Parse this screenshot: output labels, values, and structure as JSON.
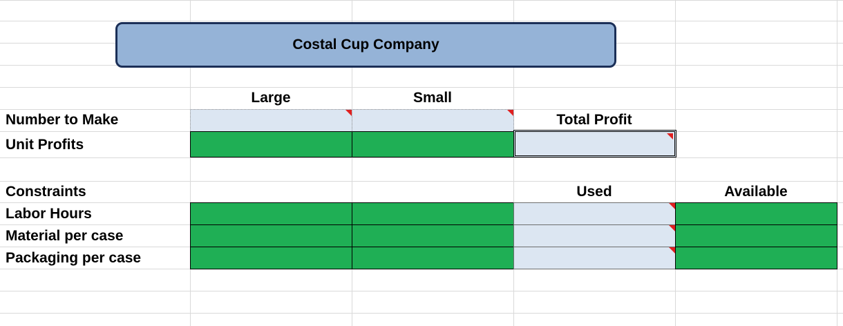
{
  "title": "Costal Cup Company",
  "headers": {
    "large": "Large",
    "small": "Small",
    "total_profit": "Total Profit",
    "used": "Used",
    "available": "Available"
  },
  "rows": {
    "number_to_make": "Number to Make",
    "unit_profits": "Unit Profits",
    "constraints": "Constraints",
    "labor_hours": "Labor Hours",
    "material_per_case": "Material per case",
    "packaging_per_case": "Packaging per case"
  },
  "colors": {
    "green_cell": "#1faf55",
    "input_cell": "#dce6f2",
    "title_fill": "#95b3d7",
    "title_border": "#1b2f57",
    "comment_marker": "#e02020"
  }
}
